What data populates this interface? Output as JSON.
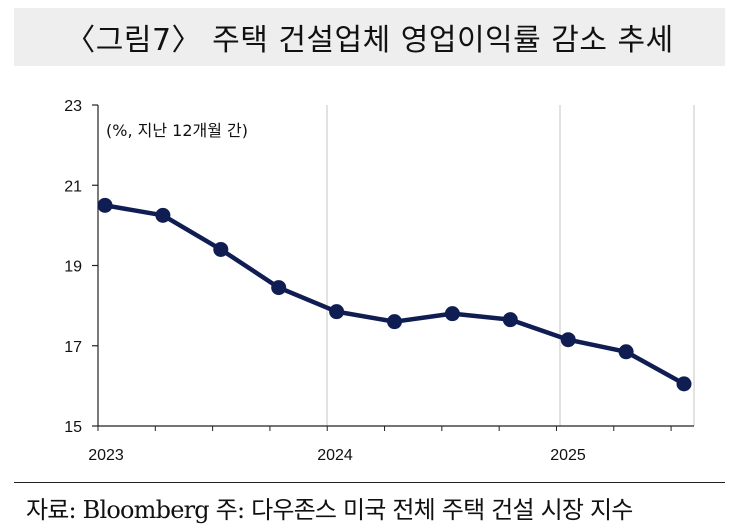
{
  "title": "〈그림7〉 주택 건설업체 영업이익률 감소 추세",
  "source": "자료: Bloomberg 주: 다우존스 미국 전체 주택 건설 시장 지수",
  "chart_data": {
    "type": "line",
    "title": "〈그림7〉 주택 건설업체 영업이익률 감소 추세",
    "annotation": "(%, 지난 12개월 간)",
    "xlabel": "",
    "ylabel": "",
    "x": [
      "2023-01",
      "2023-04",
      "2023-07",
      "2023-10",
      "2024-01",
      "2024-04",
      "2024-07",
      "2024-10",
      "2025-01",
      "2025-04",
      "2025-07"
    ],
    "x_ticks": [
      "2023",
      "2024",
      "2025"
    ],
    "series": [
      {
        "values": [
          20.5,
          20.25,
          19.4,
          18.45,
          17.85,
          17.6,
          17.8,
          17.65,
          17.15,
          16.85,
          16.05
        ]
      }
    ],
    "ylim": [
      15,
      23
    ],
    "y_ticks": [
      15,
      17,
      19,
      21,
      23
    ],
    "grid": "vertical",
    "line_color": "#0f1d52"
  }
}
